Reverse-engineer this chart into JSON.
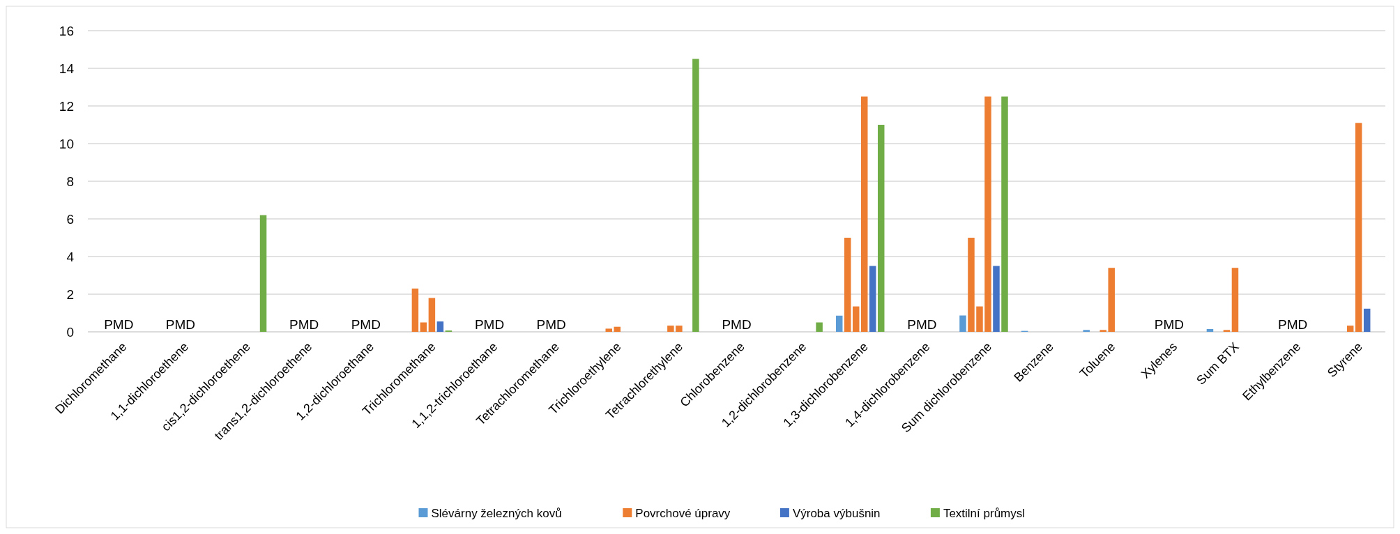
{
  "chart_data": {
    "type": "bar",
    "categories": [
      "Dichloromethane",
      "1,1-dichloroethene",
      "cis1,2-dichloroethene",
      "trans1,2-dichloroethene",
      "1,2-dichloroethane",
      "Trichloromethane",
      "1,1,2-trichloroethane",
      "Tetrachloromethane",
      "Trichloroethylene",
      "Tetrachlorethylene",
      "Chlorobenzene",
      "1,2-dichlorobenzene",
      "1,3-dichlorobenzene",
      "1,4-dichlorobenzene",
      "Sum dichlorobenzene",
      "Benzene",
      "Toluene",
      "Xylenes",
      "Sum BTX",
      "Ethylbenzene",
      "Styrene"
    ],
    "series": [
      {
        "name": "Slévárny železných kovů",
        "color": "#5b9bd5",
        "values": [
          null,
          null,
          null,
          null,
          null,
          null,
          null,
          null,
          null,
          null,
          null,
          null,
          0.86,
          null,
          0.87,
          0.05,
          0.1,
          null,
          0.15,
          null,
          null
        ]
      },
      {
        "name": "Povrchové úpravy",
        "color": "#ed7d31",
        "values": [
          null,
          null,
          null,
          null,
          null,
          2.3,
          null,
          null,
          null,
          null,
          null,
          null,
          5.0,
          null,
          5.0,
          null,
          null,
          null,
          null,
          null,
          null
        ]
      },
      {
        "color": "#ed7d31",
        "values": [
          null,
          null,
          null,
          null,
          null,
          0.5,
          null,
          null,
          0.17,
          0.33,
          null,
          null,
          1.35,
          null,
          1.35,
          null,
          0.1,
          null,
          0.1,
          null,
          0.33
        ]
      },
      {
        "color": "#ed7d31",
        "values": [
          null,
          null,
          null,
          null,
          null,
          1.8,
          null,
          null,
          0.27,
          0.33,
          null,
          null,
          12.5,
          null,
          12.5,
          null,
          3.4,
          null,
          3.4,
          null,
          11.1
        ]
      },
      {
        "name": "Výroba výbušnin",
        "color": "#4472c4",
        "values": [
          null,
          null,
          null,
          null,
          null,
          0.55,
          null,
          null,
          null,
          null,
          null,
          null,
          3.5,
          null,
          3.5,
          null,
          null,
          null,
          null,
          null,
          1.23
        ]
      },
      {
        "name": "Textilní průmysl",
        "color": "#70ad47",
        "values": [
          null,
          null,
          6.2,
          null,
          null,
          0.07,
          null,
          null,
          null,
          14.5,
          null,
          0.5,
          11.0,
          null,
          12.5,
          null,
          null,
          null,
          null,
          null,
          null
        ]
      }
    ],
    "ylim": [
      0,
      16
    ],
    "yticks": [
      0,
      2,
      4,
      6,
      8,
      10,
      12,
      14,
      16
    ],
    "grid": "y",
    "legend": "bottom",
    "annotations": [
      "PMD",
      "PMD",
      "PMD",
      "PMD",
      "PMD",
      "PMD",
      "PMD",
      "PMD",
      "PMD",
      "PMD"
    ]
  }
}
